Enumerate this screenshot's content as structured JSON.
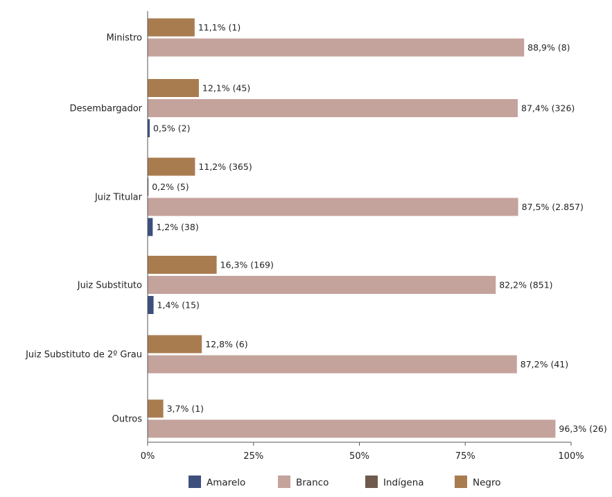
{
  "chart_data": {
    "type": "bar",
    "orientation": "horizontal",
    "categories": [
      "Ministro",
      "Desembargador",
      "Juiz Titular",
      "Juiz Substituto",
      "Juiz Substituto de 2º Grau",
      "Outros"
    ],
    "series": [
      {
        "name": "Negro",
        "color": "#a97c50",
        "values": [
          11.1,
          12.1,
          11.2,
          16.3,
          12.8,
          3.7
        ],
        "labels": [
          "11,1% (1)",
          "12,1% (45)",
          "11,2% (365)",
          "16,3% (169)",
          "12,8% (6)",
          "3,7% (1)"
        ]
      },
      {
        "name": "Indígena",
        "color": "#6e5b4d",
        "values": [
          null,
          null,
          0.2,
          null,
          null,
          null
        ],
        "labels": [
          null,
          null,
          "0,2% (5)",
          null,
          null,
          null
        ]
      },
      {
        "name": "Branco",
        "color": "#c4a39c",
        "values": [
          88.9,
          87.4,
          87.5,
          82.2,
          87.2,
          96.3
        ],
        "labels": [
          "88,9% (8)",
          "87,4% (326)",
          "87,5% (2.857)",
          "82,2% (851)",
          "87,2% (41)",
          "96,3% (26)"
        ]
      },
      {
        "name": "Amarelo",
        "color": "#3c4f7d",
        "values": [
          null,
          0.5,
          1.2,
          1.4,
          null,
          null
        ],
        "labels": [
          null,
          "0,5% (2)",
          "1,2% (38)",
          "1,4% (15)",
          null,
          null
        ]
      }
    ],
    "xlim": [
      0,
      100
    ],
    "xticks": [
      0,
      25,
      50,
      75,
      100
    ],
    "xtick_labels": [
      "0%",
      "25%",
      "50%",
      "75%",
      "100%"
    ],
    "grid": false,
    "legend": {
      "position": "bottom",
      "entries": [
        {
          "name": "Amarelo",
          "color": "#3c4f7d"
        },
        {
          "name": "Branco",
          "color": "#c4a39c"
        },
        {
          "name": "Indígena",
          "color": "#6e5b4d"
        },
        {
          "name": "Negro",
          "color": "#a97c50"
        }
      ]
    }
  }
}
